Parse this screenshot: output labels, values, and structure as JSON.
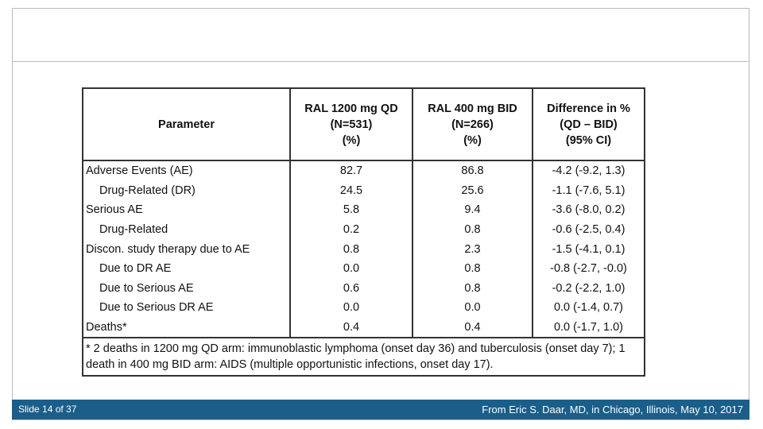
{
  "table": {
    "header": [
      [
        "Parameter"
      ],
      [
        "RAL 1200 mg QD",
        "(N=531)",
        "(%)"
      ],
      [
        "RAL 400 mg BID",
        "(N=266)",
        "(%)"
      ],
      [
        "Difference in %",
        "(QD – BID)",
        "(95% CI)"
      ]
    ],
    "rows": [
      [
        "Adverse Events (AE)",
        "82.7",
        "86.8",
        "-4.2 (-9.2, 1.3)"
      ],
      [
        "Drug-Related (DR)",
        "24.5",
        "25.6",
        "-1.1 (-7.6, 5.1)"
      ],
      [
        "Serious AE",
        "5.8",
        "9.4",
        "-3.6 (-8.0, 0.2)"
      ],
      [
        "Drug-Related",
        "0.2",
        "0.8",
        "-0.6 (-2.5, 0.4)"
      ],
      [
        "Discon. study therapy due to AE",
        "0.8",
        "2.3",
        "-1.5 (-4.1, 0.1)"
      ],
      [
        "Due to DR AE",
        "0.0",
        "0.8",
        "-0.8 (-2.7, -0.0)"
      ],
      [
        "Due to Serious AE",
        "0.6",
        "0.8",
        "-0.2 (-2.2, 1.0)"
      ],
      [
        "Due to Serious DR AE",
        "0.0",
        "0.0",
        "0.0 (-1.4, 0.7)"
      ],
      [
        "Deaths*",
        "0.4",
        "0.4",
        "0.0 (-1.7, 1.0)"
      ]
    ],
    "footnote": "* 2 deaths in 1200 mg QD arm: immunoblastic lymphoma (onset day 36) and tuberculosis (onset day 7); 1 death in 400 mg BID arm: AIDS (multiple opportunistic infections, onset day 17)."
  },
  "footer": {
    "slide": "Slide 14 of 37",
    "source": "From Eric S. Daar, MD, in Chicago, Illinois, May 10, 2017"
  }
}
